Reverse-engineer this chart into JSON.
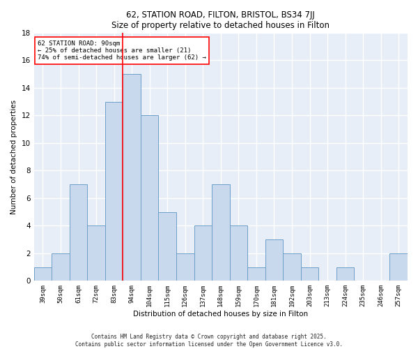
{
  "title1": "62, STATION ROAD, FILTON, BRISTOL, BS34 7JJ",
  "title2": "Size of property relative to detached houses in Filton",
  "xlabel": "Distribution of detached houses by size in Filton",
  "ylabel": "Number of detached properties",
  "categories": [
    "39sqm",
    "50sqm",
    "61sqm",
    "72sqm",
    "83sqm",
    "94sqm",
    "104sqm",
    "115sqm",
    "126sqm",
    "137sqm",
    "148sqm",
    "159sqm",
    "170sqm",
    "181sqm",
    "192sqm",
    "203sqm",
    "213sqm",
    "224sqm",
    "235sqm",
    "246sqm",
    "257sqm"
  ],
  "values": [
    1,
    2,
    7,
    4,
    13,
    15,
    12,
    5,
    2,
    4,
    7,
    4,
    1,
    3,
    2,
    1,
    0,
    1,
    0,
    0,
    2
  ],
  "bar_color": "#c9d9ed",
  "bar_edge_color": "#6b9ec8",
  "vline_x": 4.5,
  "vline_color": "red",
  "annotation_text": "62 STATION ROAD: 90sqm\n← 25% of detached houses are smaller (21)\n74% of semi-detached houses are larger (62) →",
  "annotation_box_color": "white",
  "annotation_box_edge": "red",
  "ylim": [
    0,
    18
  ],
  "yticks": [
    0,
    2,
    4,
    6,
    8,
    10,
    12,
    14,
    16,
    18
  ],
  "footer": "Contains HM Land Registry data © Crown copyright and database right 2025.\nContains public sector information licensed under the Open Government Licence v3.0.",
  "bg_color": "#e8eef7"
}
